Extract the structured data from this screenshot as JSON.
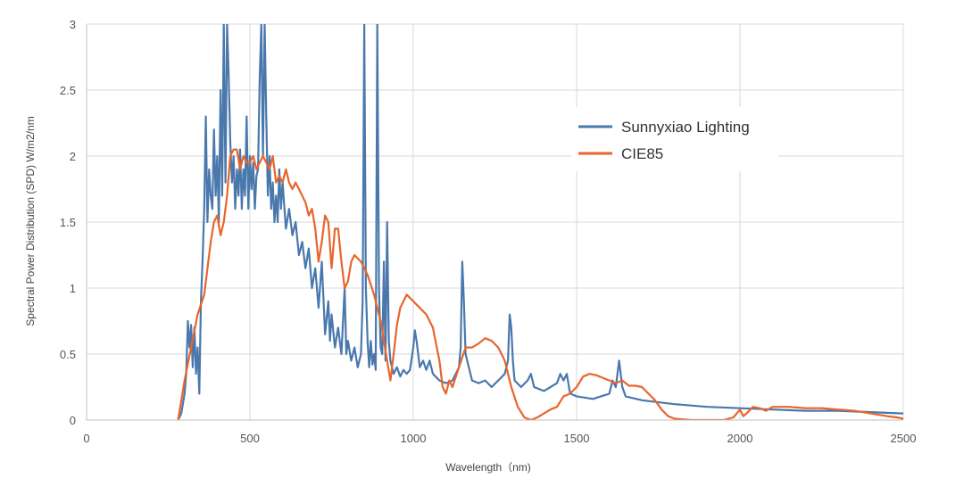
{
  "chart_data": {
    "type": "line",
    "title": "",
    "xlabel": "Wavelength（nm)",
    "ylabel": "Spectral Power Distribution (SPD) W/m2/nm",
    "xlim": [
      0,
      2500
    ],
    "ylim": [
      0,
      3
    ],
    "x_ticks": [
      0,
      500,
      1000,
      1500,
      2000,
      2500
    ],
    "y_ticks": [
      0,
      0.5,
      1,
      1.5,
      2,
      2.5,
      3
    ],
    "y_tick_labels": [
      "0",
      "0.5",
      "1",
      "1.5",
      "2",
      "2.5",
      "3"
    ],
    "grid": true,
    "legend_position": "right",
    "series": [
      {
        "name": "Sunnyxiao Lighting",
        "color": "#4a78ad",
        "points": [
          [
            280,
            0
          ],
          [
            290,
            0.05
          ],
          [
            300,
            0.2
          ],
          [
            305,
            0.35
          ],
          [
            310,
            0.75
          ],
          [
            315,
            0.55
          ],
          [
            320,
            0.72
          ],
          [
            325,
            0.4
          ],
          [
            330,
            0.7
          ],
          [
            335,
            0.35
          ],
          [
            340,
            0.55
          ],
          [
            345,
            0.2
          ],
          [
            350,
            0.9
          ],
          [
            355,
            1.2
          ],
          [
            360,
            1.6
          ],
          [
            365,
            2.3
          ],
          [
            370,
            1.5
          ],
          [
            375,
            1.9
          ],
          [
            380,
            1.7
          ],
          [
            385,
            1.6
          ],
          [
            390,
            2.2
          ],
          [
            395,
            1.7
          ],
          [
            400,
            2.0
          ],
          [
            405,
            1.5
          ],
          [
            410,
            2.5
          ],
          [
            415,
            1.7
          ],
          [
            420,
            3.0
          ],
          [
            425,
            1.8
          ],
          [
            430,
            3.0
          ],
          [
            435,
            2.6
          ],
          [
            440,
            2.1
          ],
          [
            445,
            1.8
          ],
          [
            450,
            2.0
          ],
          [
            455,
            1.6
          ],
          [
            460,
            1.9
          ],
          [
            465,
            1.7
          ],
          [
            470,
            2.05
          ],
          [
            475,
            1.6
          ],
          [
            480,
            1.9
          ],
          [
            485,
            1.7
          ],
          [
            490,
            2.3
          ],
          [
            495,
            1.6
          ],
          [
            500,
            2.0
          ],
          [
            505,
            1.75
          ],
          [
            510,
            1.95
          ],
          [
            515,
            1.6
          ],
          [
            520,
            1.85
          ],
          [
            525,
            1.9
          ],
          [
            530,
            2.6
          ],
          [
            535,
            3.0
          ],
          [
            540,
            2.0
          ],
          [
            545,
            3.0
          ],
          [
            550,
            2.3
          ],
          [
            555,
            1.7
          ],
          [
            560,
            2.0
          ],
          [
            565,
            1.6
          ],
          [
            570,
            1.8
          ],
          [
            575,
            1.5
          ],
          [
            580,
            1.7
          ],
          [
            585,
            1.5
          ],
          [
            590,
            1.9
          ],
          [
            595,
            1.6
          ],
          [
            600,
            1.8
          ],
          [
            610,
            1.45
          ],
          [
            620,
            1.6
          ],
          [
            630,
            1.4
          ],
          [
            640,
            1.5
          ],
          [
            650,
            1.25
          ],
          [
            660,
            1.35
          ],
          [
            670,
            1.15
          ],
          [
            680,
            1.3
          ],
          [
            690,
            1.0
          ],
          [
            700,
            1.15
          ],
          [
            710,
            0.85
          ],
          [
            720,
            1.2
          ],
          [
            730,
            0.65
          ],
          [
            740,
            0.9
          ],
          [
            745,
            0.6
          ],
          [
            750,
            0.8
          ],
          [
            760,
            0.55
          ],
          [
            770,
            0.7
          ],
          [
            780,
            0.5
          ],
          [
            790,
            1.0
          ],
          [
            795,
            0.5
          ],
          [
            800,
            0.6
          ],
          [
            810,
            0.45
          ],
          [
            820,
            0.55
          ],
          [
            830,
            0.4
          ],
          [
            840,
            0.5
          ],
          [
            845,
            0.9
          ],
          [
            850,
            3.0
          ],
          [
            855,
            1.0
          ],
          [
            860,
            0.6
          ],
          [
            865,
            0.4
          ],
          [
            870,
            0.6
          ],
          [
            875,
            0.42
          ],
          [
            880,
            0.5
          ],
          [
            885,
            0.38
          ],
          [
            890,
            3.0
          ],
          [
            895,
            1.0
          ],
          [
            900,
            0.55
          ],
          [
            905,
            0.5
          ],
          [
            910,
            1.2
          ],
          [
            915,
            0.45
          ],
          [
            920,
            1.5
          ],
          [
            925,
            0.6
          ],
          [
            930,
            0.45
          ],
          [
            940,
            0.35
          ],
          [
            950,
            0.4
          ],
          [
            960,
            0.33
          ],
          [
            970,
            0.38
          ],
          [
            980,
            0.35
          ],
          [
            990,
            0.38
          ],
          [
            1000,
            0.55
          ],
          [
            1005,
            0.68
          ],
          [
            1010,
            0.6
          ],
          [
            1020,
            0.4
          ],
          [
            1030,
            0.45
          ],
          [
            1040,
            0.38
          ],
          [
            1050,
            0.45
          ],
          [
            1060,
            0.35
          ],
          [
            1080,
            0.3
          ],
          [
            1100,
            0.28
          ],
          [
            1120,
            0.3
          ],
          [
            1130,
            0.35
          ],
          [
            1140,
            0.4
          ],
          [
            1145,
            0.55
          ],
          [
            1150,
            1.2
          ],
          [
            1155,
            0.9
          ],
          [
            1160,
            0.5
          ],
          [
            1170,
            0.4
          ],
          [
            1180,
            0.3
          ],
          [
            1200,
            0.28
          ],
          [
            1220,
            0.3
          ],
          [
            1240,
            0.25
          ],
          [
            1260,
            0.3
          ],
          [
            1280,
            0.35
          ],
          [
            1290,
            0.45
          ],
          [
            1295,
            0.8
          ],
          [
            1300,
            0.7
          ],
          [
            1305,
            0.45
          ],
          [
            1310,
            0.3
          ],
          [
            1330,
            0.25
          ],
          [
            1350,
            0.3
          ],
          [
            1360,
            0.35
          ],
          [
            1370,
            0.25
          ],
          [
            1400,
            0.22
          ],
          [
            1420,
            0.25
          ],
          [
            1440,
            0.28
          ],
          [
            1450,
            0.35
          ],
          [
            1460,
            0.3
          ],
          [
            1470,
            0.35
          ],
          [
            1480,
            0.2
          ],
          [
            1500,
            0.18
          ],
          [
            1550,
            0.16
          ],
          [
            1600,
            0.2
          ],
          [
            1610,
            0.3
          ],
          [
            1620,
            0.25
          ],
          [
            1630,
            0.45
          ],
          [
            1640,
            0.25
          ],
          [
            1650,
            0.18
          ],
          [
            1700,
            0.15
          ],
          [
            1800,
            0.12
          ],
          [
            1900,
            0.1
          ],
          [
            2000,
            0.09
          ],
          [
            2100,
            0.08
          ],
          [
            2200,
            0.07
          ],
          [
            2300,
            0.07
          ],
          [
            2400,
            0.06
          ],
          [
            2500,
            0.05
          ]
        ]
      },
      {
        "name": "CIE85",
        "color": "#e8652c",
        "points": [
          [
            280,
            0
          ],
          [
            300,
            0.3
          ],
          [
            320,
            0.55
          ],
          [
            340,
            0.8
          ],
          [
            360,
            0.95
          ],
          [
            380,
            1.35
          ],
          [
            390,
            1.5
          ],
          [
            400,
            1.55
          ],
          [
            410,
            1.4
          ],
          [
            420,
            1.5
          ],
          [
            430,
            1.7
          ],
          [
            440,
            2.0
          ],
          [
            450,
            2.05
          ],
          [
            460,
            2.05
          ],
          [
            470,
            1.9
          ],
          [
            480,
            2.0
          ],
          [
            490,
            1.95
          ],
          [
            500,
            1.95
          ],
          [
            510,
            2.0
          ],
          [
            520,
            1.9
          ],
          [
            530,
            1.95
          ],
          [
            540,
            2.0
          ],
          [
            550,
            1.95
          ],
          [
            560,
            1.9
          ],
          [
            570,
            2.0
          ],
          [
            580,
            1.8
          ],
          [
            590,
            1.85
          ],
          [
            600,
            1.8
          ],
          [
            610,
            1.9
          ],
          [
            620,
            1.8
          ],
          [
            630,
            1.75
          ],
          [
            640,
            1.8
          ],
          [
            650,
            1.75
          ],
          [
            660,
            1.7
          ],
          [
            670,
            1.65
          ],
          [
            680,
            1.55
          ],
          [
            690,
            1.6
          ],
          [
            700,
            1.45
          ],
          [
            710,
            1.2
          ],
          [
            720,
            1.35
          ],
          [
            730,
            1.55
          ],
          [
            740,
            1.5
          ],
          [
            750,
            1.15
          ],
          [
            760,
            1.45
          ],
          [
            770,
            1.45
          ],
          [
            780,
            1.2
          ],
          [
            790,
            1.0
          ],
          [
            800,
            1.05
          ],
          [
            810,
            1.2
          ],
          [
            820,
            1.25
          ],
          [
            840,
            1.2
          ],
          [
            860,
            1.1
          ],
          [
            880,
            0.95
          ],
          [
            900,
            0.75
          ],
          [
            910,
            0.6
          ],
          [
            920,
            0.45
          ],
          [
            930,
            0.3
          ],
          [
            940,
            0.5
          ],
          [
            950,
            0.72
          ],
          [
            960,
            0.85
          ],
          [
            980,
            0.95
          ],
          [
            1000,
            0.9
          ],
          [
            1020,
            0.85
          ],
          [
            1040,
            0.8
          ],
          [
            1060,
            0.7
          ],
          [
            1080,
            0.45
          ],
          [
            1090,
            0.25
          ],
          [
            1100,
            0.2
          ],
          [
            1110,
            0.3
          ],
          [
            1120,
            0.25
          ],
          [
            1140,
            0.4
          ],
          [
            1160,
            0.55
          ],
          [
            1180,
            0.55
          ],
          [
            1200,
            0.58
          ],
          [
            1220,
            0.62
          ],
          [
            1240,
            0.6
          ],
          [
            1260,
            0.55
          ],
          [
            1280,
            0.45
          ],
          [
            1300,
            0.25
          ],
          [
            1320,
            0.1
          ],
          [
            1340,
            0.02
          ],
          [
            1360,
            0.0
          ],
          [
            1380,
            0.02
          ],
          [
            1400,
            0.05
          ],
          [
            1420,
            0.08
          ],
          [
            1440,
            0.1
          ],
          [
            1460,
            0.18
          ],
          [
            1480,
            0.2
          ],
          [
            1500,
            0.25
          ],
          [
            1520,
            0.33
          ],
          [
            1540,
            0.35
          ],
          [
            1560,
            0.34
          ],
          [
            1580,
            0.32
          ],
          [
            1600,
            0.3
          ],
          [
            1620,
            0.28
          ],
          [
            1640,
            0.3
          ],
          [
            1660,
            0.26
          ],
          [
            1680,
            0.26
          ],
          [
            1700,
            0.25
          ],
          [
            1720,
            0.2
          ],
          [
            1740,
            0.15
          ],
          [
            1760,
            0.08
          ],
          [
            1780,
            0.03
          ],
          [
            1800,
            0.01
          ],
          [
            1850,
            0.0
          ],
          [
            1900,
            0.0
          ],
          [
            1950,
            0.0
          ],
          [
            1980,
            0.02
          ],
          [
            2000,
            0.08
          ],
          [
            2010,
            0.03
          ],
          [
            2020,
            0.05
          ],
          [
            2040,
            0.1
          ],
          [
            2060,
            0.09
          ],
          [
            2080,
            0.07
          ],
          [
            2100,
            0.1
          ],
          [
            2150,
            0.1
          ],
          [
            2200,
            0.09
          ],
          [
            2250,
            0.09
          ],
          [
            2300,
            0.08
          ],
          [
            2350,
            0.07
          ],
          [
            2400,
            0.05
          ],
          [
            2450,
            0.03
          ],
          [
            2480,
            0.02
          ],
          [
            2500,
            0.01
          ]
        ]
      }
    ]
  }
}
